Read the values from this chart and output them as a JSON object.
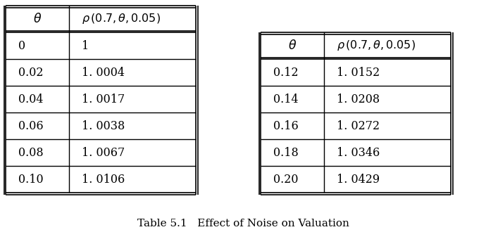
{
  "table1": {
    "headers": [
      "θ",
      "ρ(0.7,θ,0.05)"
    ],
    "rows": [
      [
        "0",
        "1"
      ],
      [
        "0.02",
        "1. 0004"
      ],
      [
        "0.04",
        "1. 0017"
      ],
      [
        "0.06",
        "1. 0038"
      ],
      [
        "0.08",
        "1. 0067"
      ],
      [
        "0.10",
        "1. 0106"
      ]
    ]
  },
  "table2": {
    "headers": [
      "θ",
      "ρ(0.7,θ,0.05)"
    ],
    "rows": [
      [
        "0.12",
        "1. 0152"
      ],
      [
        "0.14",
        "1. 0208"
      ],
      [
        "0.16",
        "1. 0272"
      ],
      [
        "0.18",
        "1. 0346"
      ],
      [
        "0.20",
        "1. 0429"
      ]
    ]
  },
  "caption": "Table 5.1   Effect of Noise on Valuation",
  "bg_color": "#ffffff",
  "text_color": "#000000",
  "border_color": "#000000",
  "font_size": 11.5,
  "caption_font_size": 11
}
